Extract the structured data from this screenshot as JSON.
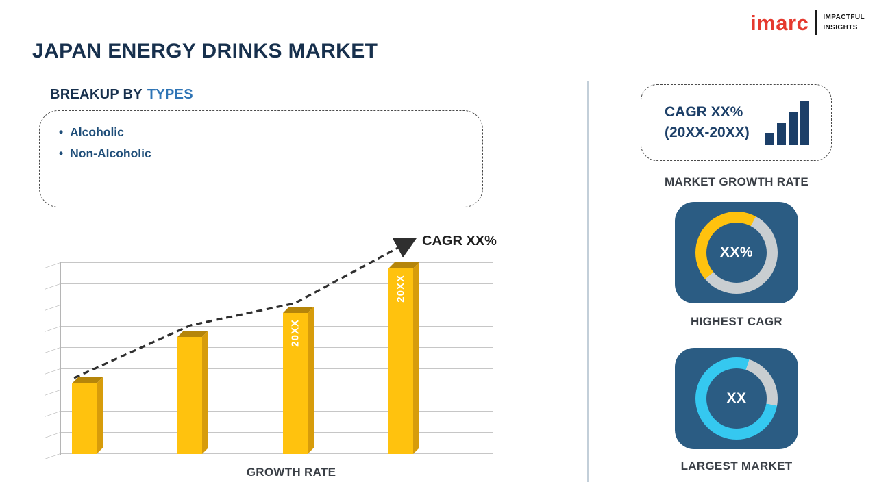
{
  "header": {
    "title": "JAPAN ENERGY DRINKS MARKET",
    "logo": {
      "brand": "imarc",
      "tagline_line1": "IMPACTFUL",
      "tagline_line2": "INSIGHTS"
    }
  },
  "breakup": {
    "heading_prefix": "BREAKUP BY",
    "heading_highlight": "TYPES",
    "items": [
      "Alcoholic",
      "Non-Alcoholic"
    ]
  },
  "right_panel": {
    "cagr_box": {
      "line1": "CAGR XX%",
      "line2": "(20XX-20XX)"
    },
    "market_growth_label": "MARKET GROWTH RATE"
  },
  "chart_data": [
    {
      "type": "bar",
      "title": "GROWTH RATE",
      "categories": [
        "",
        "",
        "20XX",
        "20XX"
      ],
      "values": [
        38,
        63,
        76,
        100
      ],
      "value_note": "relative heights; placeholder template chart, no numeric axis shown",
      "annotation": "CAGR XX%",
      "trend": "rising dashed arrow over bars",
      "bar_color": "#ffc20e",
      "grid": "horizontal gridlines, 3D perspective"
    },
    {
      "type": "pie",
      "title": "HIGHEST CAGR",
      "label": "XX%",
      "slices": [
        {
          "name": "highlight",
          "percent": 44,
          "color": "#ffc20e"
        },
        {
          "name": "remainder",
          "percent": 56,
          "color": "#c9ced1"
        }
      ]
    },
    {
      "type": "pie",
      "title": "LARGEST MARKET",
      "label": "XX",
      "slices": [
        {
          "name": "highlight",
          "percent": 78,
          "color": "#35c8f0"
        },
        {
          "name": "remainder",
          "percent": 22,
          "color": "#c9ced1"
        }
      ]
    }
  ],
  "colors": {
    "brand_red": "#e5392e",
    "heading_navy": "#17304d",
    "highlight_blue": "#2e74b5",
    "bullet_blue": "#1f4e79",
    "bar_yellow": "#ffc20e",
    "card_blue": "#2b5c83",
    "donut_gray": "#c9ced1",
    "donut_cyan": "#35c8f0"
  }
}
